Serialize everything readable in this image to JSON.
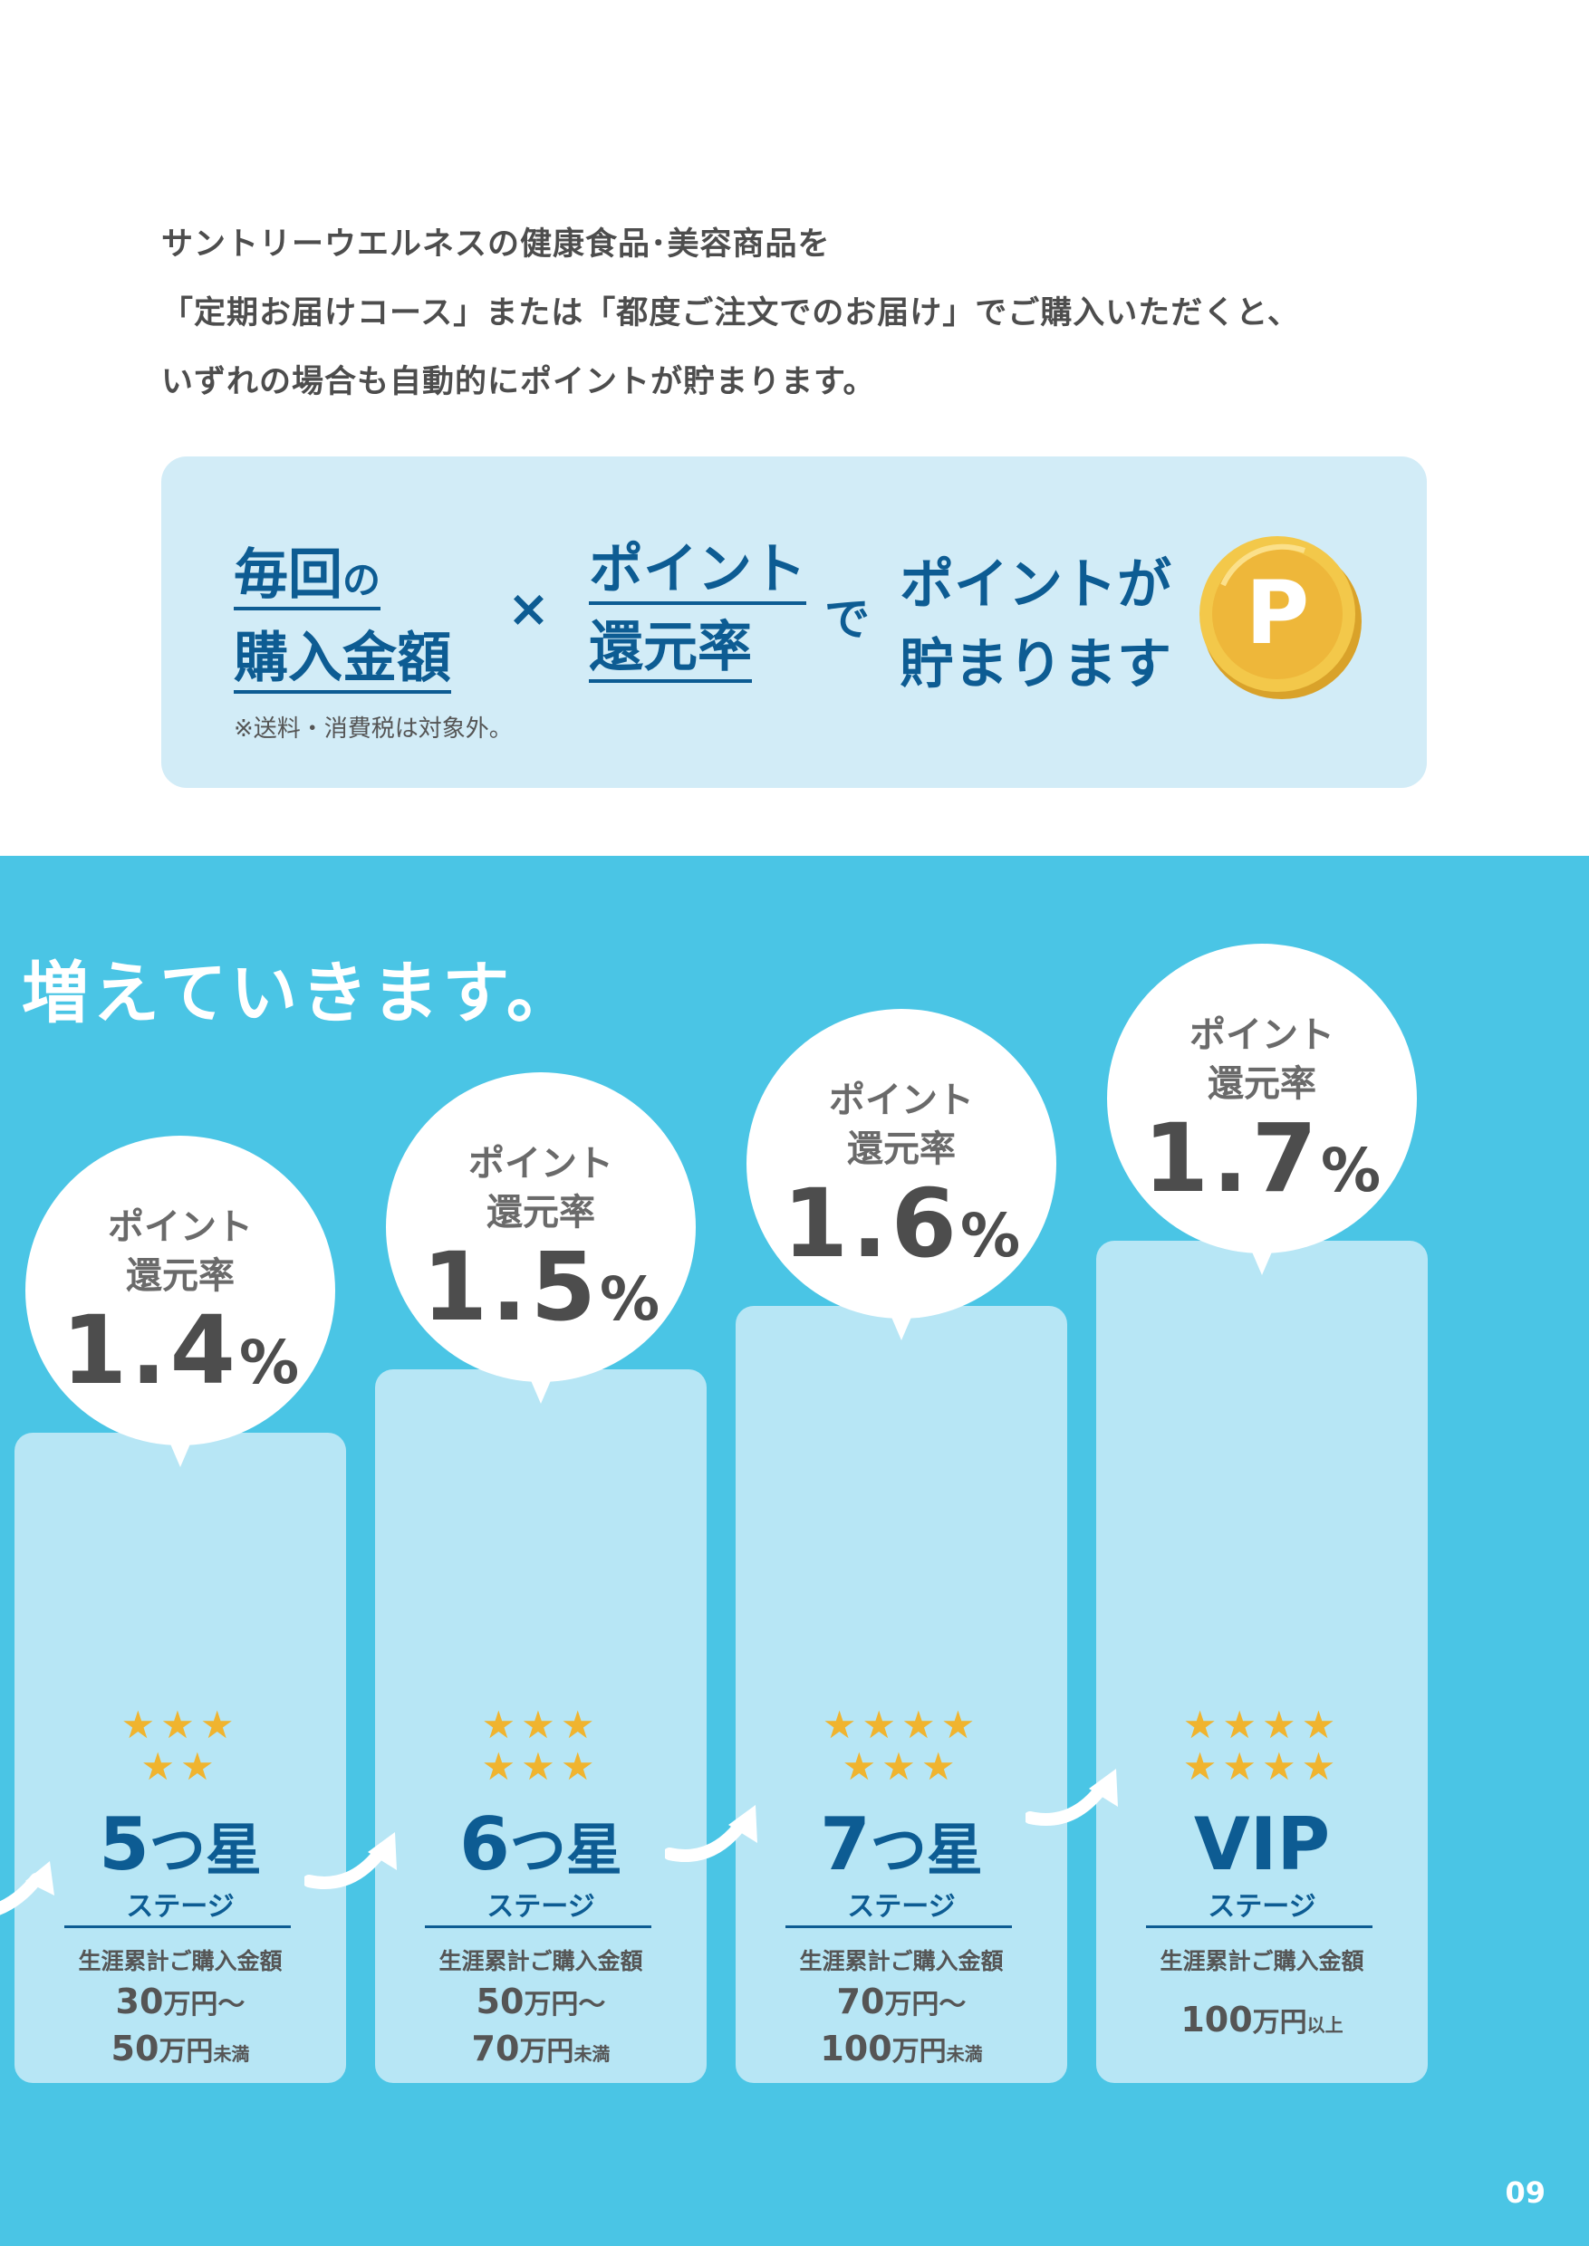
{
  "intro": {
    "lines": [
      "サントリーウエルネスの健康食品･美容商品を",
      "「定期お届けコース」または「都度ご注文でのお届け」でご購入いただくと、",
      "いずれの場合も自動的にポイントが貯まります。"
    ]
  },
  "formula": {
    "term1_line1_big": "毎回",
    "term1_line1_small": "の",
    "term1_line2": "購入金額",
    "times": "×",
    "term2_line1": "ポイント",
    "term2_line2": "還元率",
    "de": "で",
    "result_line1": "ポイントが",
    "result_line2": "貯まります",
    "coin_letter": "P",
    "note": "※送料・消費税は対象外。"
  },
  "headline": "増えていきます。",
  "page_number": "09",
  "stages": [
    {
      "bubble_label_1": "ポイント",
      "bubble_label_2": "還元率",
      "rate": "1.4",
      "pct": "%",
      "stars_row1": "★★★",
      "stars_row2": "★★",
      "stage_num": "5",
      "stage_suffix": "つ星",
      "stage_sub": "ステージ",
      "amount_label": "生涯累計ご購入金額",
      "amt1_num": "30",
      "amt1_unit": "万円～",
      "amt2_num": "50",
      "amt2_unit": "万円",
      "amt2_tiny": "未満"
    },
    {
      "bubble_label_1": "ポイント",
      "bubble_label_2": "還元率",
      "rate": "1.5",
      "pct": "%",
      "stars_row1": "★★★",
      "stars_row2": "★★★",
      "stage_num": "6",
      "stage_suffix": "つ星",
      "stage_sub": "ステージ",
      "amount_label": "生涯累計ご購入金額",
      "amt1_num": "50",
      "amt1_unit": "万円～",
      "amt2_num": "70",
      "amt2_unit": "万円",
      "amt2_tiny": "未満"
    },
    {
      "bubble_label_1": "ポイント",
      "bubble_label_2": "還元率",
      "rate": "1.6",
      "pct": "%",
      "stars_row1": "★★★★",
      "stars_row2": "★★★",
      "stage_num": "7",
      "stage_suffix": "つ星",
      "stage_sub": "ステージ",
      "amount_label": "生涯累計ご購入金額",
      "amt1_num": "70",
      "amt1_unit": "万円～",
      "amt2_num": "100",
      "amt2_unit": "万円",
      "amt2_tiny": "未満"
    },
    {
      "bubble_label_1": "ポイント",
      "bubble_label_2": "還元率",
      "rate": "1.7",
      "pct": "%",
      "stars_row1": "★★★★",
      "stars_row2": "★★★★",
      "stage_num": "VIP",
      "stage_suffix": "",
      "stage_sub": "ステージ",
      "amount_label": "生涯累計ご購入金額",
      "amt1_num": "100",
      "amt1_unit": "万円",
      "amt1_tiny": "以上"
    }
  ],
  "colors": {
    "accent_blue": "#0d5c93",
    "sky": "#4ac5e5",
    "panel": "#b7e6f5",
    "star": "#f0b42f",
    "coin": "#eeb73a"
  }
}
